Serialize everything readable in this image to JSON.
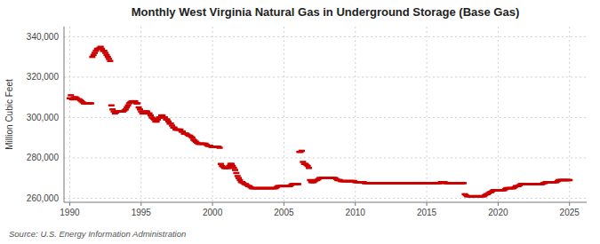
{
  "chart_data": {
    "type": "scatter",
    "title": "Monthly West Virginia Natural Gas in Underground Storage (Base Gas)",
    "ylabel": "Million Cubic Feet",
    "annotations": [
      "Source: U.S. Energy Information Administration"
    ],
    "color": "#cc0000",
    "marker": "dash",
    "grid": true,
    "xlim": [
      1989.6,
      2026.2
    ],
    "xticks": [
      1990,
      1995,
      2000,
      2005,
      2010,
      2015,
      2020,
      2025
    ],
    "ylim": [
      258000,
      345000
    ],
    "yticks": [
      {
        "value": 260000,
        "label": "260,000"
      },
      {
        "value": 280000,
        "label": "280,000"
      },
      {
        "value": 300000,
        "label": "300,000"
      },
      {
        "value": 320000,
        "label": "320,000"
      },
      {
        "value": 340000,
        "label": "340,000"
      }
    ],
    "x": [
      1990.0,
      1990.083,
      1990.167,
      1990.25,
      1990.333,
      1990.417,
      1990.5,
      1990.583,
      1990.667,
      1990.75,
      1990.833,
      1990.917,
      1991.0,
      1991.083,
      1991.167,
      1991.25,
      1991.333,
      1991.417,
      1991.5,
      1991.583,
      1991.667,
      1991.75,
      1991.833,
      1991.917,
      1992.0,
      1992.083,
      1992.167,
      1992.25,
      1992.333,
      1992.417,
      1992.5,
      1992.583,
      1992.667,
      1992.75,
      1992.833,
      1992.917,
      1993.0,
      1993.083,
      1993.167,
      1993.25,
      1993.333,
      1993.417,
      1993.5,
      1993.583,
      1993.667,
      1993.75,
      1993.833,
      1993.917,
      1994.0,
      1994.083,
      1994.167,
      1994.25,
      1994.333,
      1994.417,
      1994.5,
      1994.583,
      1994.667,
      1994.75,
      1994.833,
      1994.917,
      1995.0,
      1995.083,
      1995.167,
      1995.25,
      1995.333,
      1995.417,
      1995.5,
      1995.583,
      1995.667,
      1995.75,
      1995.833,
      1995.917,
      1996.0,
      1996.083,
      1996.167,
      1996.25,
      1996.333,
      1996.417,
      1996.5,
      1996.583,
      1996.667,
      1996.75,
      1996.833,
      1996.917,
      1997.0,
      1997.083,
      1997.167,
      1997.25,
      1997.333,
      1997.417,
      1997.5,
      1997.583,
      1997.667,
      1997.75,
      1997.833,
      1997.917,
      1998.0,
      1998.083,
      1998.167,
      1998.25,
      1998.333,
      1998.417,
      1998.5,
      1998.583,
      1998.667,
      1998.75,
      1998.833,
      1998.917,
      1999.0,
      1999.083,
      1999.167,
      1999.25,
      1999.333,
      1999.417,
      1999.5,
      1999.583,
      1999.667,
      1999.75,
      1999.833,
      1999.917,
      2000.0,
      2000.083,
      2000.167,
      2000.25,
      2000.333,
      2000.417,
      2000.5,
      2000.583,
      2000.667,
      2000.75,
      2000.833,
      2000.917,
      2001.0,
      2001.083,
      2001.167,
      2001.25,
      2001.333,
      2001.417,
      2001.5,
      2001.583,
      2001.667,
      2001.75,
      2001.833,
      2001.917,
      2002.0,
      2002.083,
      2002.167,
      2002.25,
      2002.333,
      2002.417,
      2002.5,
      2002.583,
      2002.667,
      2002.75,
      2002.833,
      2002.917,
      2003.0,
      2003.083,
      2003.167,
      2003.25,
      2003.333,
      2003.417,
      2003.5,
      2003.583,
      2003.667,
      2003.75,
      2003.833,
      2003.917,
      2004.0,
      2004.083,
      2004.167,
      2004.25,
      2004.333,
      2004.417,
      2004.5,
      2004.583,
      2004.667,
      2004.75,
      2004.833,
      2004.917,
      2005.0,
      2005.083,
      2005.167,
      2005.25,
      2005.333,
      2005.417,
      2005.5,
      2005.583,
      2005.667,
      2005.75,
      2005.833,
      2005.917,
      2006.0,
      2006.083,
      2006.167,
      2006.25,
      2006.333,
      2006.417,
      2006.5,
      2006.583,
      2006.667,
      2006.75,
      2006.833,
      2006.917,
      2007.0,
      2007.083,
      2007.167,
      2007.25,
      2007.333,
      2007.417,
      2007.5,
      2007.583,
      2007.667,
      2007.75,
      2007.833,
      2007.917,
      2008.0,
      2008.083,
      2008.167,
      2008.25,
      2008.333,
      2008.417,
      2008.5,
      2008.583,
      2008.667,
      2008.75,
      2008.833,
      2008.917,
      2009.0,
      2009.083,
      2009.167,
      2009.25,
      2009.333,
      2009.417,
      2009.5,
      2009.583,
      2009.667,
      2009.75,
      2009.833,
      2009.917,
      2010.0,
      2010.083,
      2010.167,
      2010.25,
      2010.333,
      2010.417,
      2010.5,
      2010.583,
      2010.667,
      2010.75,
      2010.833,
      2010.917,
      2011.0,
      2011.083,
      2011.167,
      2011.25,
      2011.333,
      2011.417,
      2011.5,
      2011.583,
      2011.667,
      2011.75,
      2011.833,
      2011.917,
      2012.0,
      2012.083,
      2012.167,
      2012.25,
      2012.333,
      2012.417,
      2012.5,
      2012.583,
      2012.667,
      2012.75,
      2012.833,
      2012.917,
      2013.0,
      2013.083,
      2013.167,
      2013.25,
      2013.333,
      2013.417,
      2013.5,
      2013.583,
      2013.667,
      2013.75,
      2013.833,
      2013.917,
      2014.0,
      2014.083,
      2014.167,
      2014.25,
      2014.333,
      2014.417,
      2014.5,
      2014.583,
      2014.667,
      2014.75,
      2014.833,
      2014.917,
      2015.0,
      2015.083,
      2015.167,
      2015.25,
      2015.333,
      2015.417,
      2015.5,
      2015.583,
      2015.667,
      2015.75,
      2015.833,
      2015.917,
      2016.0,
      2016.083,
      2016.167,
      2016.25,
      2016.333,
      2016.417,
      2016.5,
      2016.583,
      2016.667,
      2016.75,
      2016.833,
      2016.917,
      2017.0,
      2017.083,
      2017.167,
      2017.25,
      2017.333,
      2017.417,
      2017.5,
      2017.583,
      2017.667,
      2017.75,
      2017.833,
      2017.917,
      2018.0,
      2018.083,
      2018.167,
      2018.25,
      2018.333,
      2018.417,
      2018.5,
      2018.583,
      2018.667,
      2018.75,
      2018.833,
      2018.917,
      2019.0,
      2019.083,
      2019.167,
      2019.25,
      2019.333,
      2019.417,
      2019.5,
      2019.583,
      2019.667,
      2019.75,
      2019.833,
      2019.917,
      2020.0,
      2020.083,
      2020.167,
      2020.25,
      2020.333,
      2020.417,
      2020.5,
      2020.583,
      2020.667,
      2020.75,
      2020.833,
      2020.917,
      2021.0,
      2021.083,
      2021.167,
      2021.25,
      2021.333,
      2021.417,
      2021.5,
      2021.583,
      2021.667,
      2021.75,
      2021.833,
      2021.917,
      2022.0,
      2022.083,
      2022.167,
      2022.25,
      2022.333,
      2022.417,
      2022.5,
      2022.583,
      2022.667,
      2022.75,
      2022.833,
      2022.917,
      2023.0,
      2023.083,
      2023.167,
      2023.25,
      2023.333,
      2023.417,
      2023.5,
      2023.583,
      2023.667,
      2023.75,
      2023.833,
      2023.917,
      2024.0,
      2024.083,
      2024.167,
      2024.25,
      2024.333,
      2024.417,
      2024.5,
      2024.583,
      2024.667,
      2024.75,
      2024.833,
      2024.917,
      2025.0
    ],
    "values": [
      309500,
      311000,
      309000,
      309500,
      310000,
      310000,
      309500,
      309000,
      309000,
      308500,
      308000,
      307500,
      307000,
      307000,
      307000,
      307000,
      307000,
      307000,
      307000,
      330000,
      331000,
      332000,
      333000,
      334000,
      334000,
      334500,
      335000,
      334000,
      333000,
      333000,
      332000,
      331000,
      330000,
      329000,
      328000,
      306000,
      304000,
      303000,
      302000,
      302500,
      303000,
      303000,
      303000,
      303000,
      303000,
      303000,
      303500,
      304000,
      305000,
      306000,
      307000,
      307500,
      308000,
      308000,
      308000,
      308000,
      307000,
      307000,
      305000,
      304000,
      303000,
      302000,
      302000,
      303000,
      303000,
      303000,
      302000,
      302000,
      301000,
      300000,
      299500,
      299000,
      298000,
      298000,
      299000,
      300000,
      300000,
      301000,
      301000,
      300000,
      300000,
      299000,
      299000,
      298000,
      297000,
      297000,
      296000,
      295000,
      295000,
      294000,
      294000,
      294000,
      294000,
      294000,
      293000,
      293000,
      292000,
      292000,
      292000,
      291500,
      291000,
      291000,
      290500,
      290000,
      289000,
      288500,
      288000,
      287500,
      287000,
      287000,
      287000,
      287000,
      287000,
      287000,
      287000,
      286500,
      286000,
      286000,
      286000,
      285500,
      285500,
      285500,
      285500,
      285500,
      285500,
      285500,
      285000,
      277000,
      276000,
      275500,
      275000,
      275000,
      275000,
      275000,
      276000,
      277000,
      277000,
      276000,
      275000,
      274000,
      272500,
      271000,
      270000,
      269000,
      268000,
      268000,
      267500,
      267000,
      267000,
      266500,
      266000,
      266000,
      265500,
      265000,
      265000,
      265000,
      265000,
      265000,
      265000,
      265000,
      265000,
      265000,
      265000,
      265000,
      265000,
      265000,
      265000,
      265000,
      265000,
      265000,
      265000,
      265000,
      265000,
      265000,
      265500,
      266000,
      266000,
      266000,
      266000,
      266000,
      266000,
      266000,
      266000,
      266000,
      266000,
      266000,
      266500,
      267000,
      267000,
      267000,
      267000,
      267000,
      267000,
      283000,
      283000,
      283500,
      278000,
      277000,
      277000,
      276500,
      276000,
      275000,
      269000,
      268000,
      268000,
      268000,
      268500,
      269000,
      269000,
      269500,
      270000,
      270000,
      270000,
      270000,
      270000,
      270000,
      270000,
      270000,
      270000,
      270000,
      270000,
      270000,
      270000,
      270000,
      269500,
      269000,
      269000,
      269000,
      268500,
      268500,
      268500,
      268500,
      268500,
      268500,
      268500,
      268500,
      268500,
      268500,
      268500,
      268500,
      268000,
      268000,
      268000,
      268000,
      268000,
      268000,
      268000,
      268000,
      267500,
      267500,
      267500,
      267500,
      267500,
      267500,
      267500,
      267500,
      267500,
      267500,
      267500,
      267500,
      267500,
      267500,
      267500,
      267500,
      267500,
      267500,
      267500,
      267500,
      267500,
      267500,
      267500,
      267500,
      267500,
      267500,
      267500,
      267500,
      267500,
      267500,
      267500,
      267500,
      267500,
      267500,
      267500,
      267500,
      267500,
      267500,
      267500,
      267500,
      267500,
      267500,
      267500,
      267500,
      267500,
      267500,
      267500,
      267500,
      267500,
      267500,
      267500,
      267500,
      267500,
      267500,
      267500,
      267500,
      267500,
      267500,
      267500,
      267500,
      267500,
      267500,
      267500,
      267500,
      268000,
      268000,
      268000,
      268000,
      267500,
      267500,
      267500,
      267500,
      267500,
      267500,
      267500,
      267500,
      267500,
      267500,
      267500,
      267500,
      267500,
      267500,
      267500,
      267500,
      262000,
      261500,
      261000,
      261000,
      261000,
      261000,
      261000,
      261000,
      261000,
      261000,
      261000,
      261000,
      261000,
      261000,
      261000,
      261000,
      261000,
      261500,
      262000,
      262000,
      262500,
      263000,
      263000,
      263500,
      264000,
      264000,
      264000,
      264000,
      264000,
      264000,
      264000,
      264000,
      264000,
      264000,
      264500,
      265000,
      265000,
      265000,
      265000,
      265000,
      265000,
      265000,
      265500,
      266000,
      266000,
      266000,
      266500,
      267000,
      267000,
      267000,
      267000,
      267000,
      267000,
      267000,
      267000,
      267000,
      267000,
      267000,
      267000,
      267000,
      267000,
      267000,
      267000,
      267000,
      267000,
      267000,
      267500,
      267500,
      268000,
      268000,
      268000,
      268000,
      268000,
      268000,
      268000,
      268000,
      268000,
      268000,
      268500,
      269000,
      269000,
      269000,
      269000,
      269000,
      269000,
      269000,
      269000,
      269000,
      269000
    ]
  }
}
